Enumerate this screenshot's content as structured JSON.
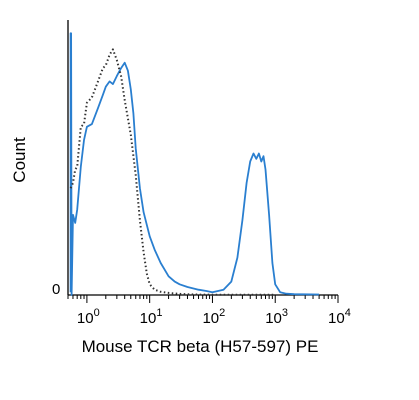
{
  "chart_data": {
    "type": "line",
    "xlabel": "Mouse TCR beta (H57-597) PE",
    "ylabel": "Count",
    "x_scale": "log",
    "xlim": [
      0.5,
      10000
    ],
    "ylim": [
      0,
      100
    ],
    "x_ticks": [
      {
        "value": 1,
        "base": "10",
        "exp": "0"
      },
      {
        "value": 10,
        "base": "10",
        "exp": "1"
      },
      {
        "value": 100,
        "base": "10",
        "exp": "2"
      },
      {
        "value": 1000,
        "base": "10",
        "exp": "3"
      },
      {
        "value": 10000,
        "base": "10",
        "exp": "4"
      }
    ],
    "y_tick_label": "0",
    "series": [
      {
        "color": "#2a7fd0",
        "style": "solid",
        "x": [
          0.55,
          0.55,
          0.56,
          0.57,
          0.6,
          0.65,
          0.7,
          0.8,
          0.9,
          1.0,
          1.2,
          1.5,
          1.8,
          2.0,
          2.3,
          2.6,
          3.0,
          3.5,
          4.0,
          4.5,
          5.0,
          5.5,
          6.0,
          7.0,
          8.0,
          10,
          12,
          15,
          20,
          25,
          30,
          40,
          60,
          80,
          100,
          150,
          200,
          250,
          300,
          350,
          400,
          450,
          500,
          550,
          600,
          650,
          700,
          800,
          900,
          1000,
          1200,
          1500,
          2000,
          5000
        ],
        "y": [
          1,
          98,
          98,
          0,
          30,
          27,
          32,
          48,
          58,
          63,
          64,
          70,
          75,
          78,
          80,
          79,
          82,
          85,
          87,
          84,
          77,
          68,
          55,
          40,
          31,
          22,
          17,
          12,
          7,
          5,
          4,
          3,
          2,
          1.5,
          1,
          2,
          5,
          14,
          28,
          42,
          50,
          53,
          51,
          53,
          50,
          52,
          47,
          30,
          12,
          4,
          1,
          0.5,
          0.3,
          0.2
        ]
      },
      {
        "color": "#333333",
        "style": "dotted",
        "x": [
          0.55,
          0.6,
          0.65,
          0.7,
          0.8,
          0.9,
          1.0,
          1.2,
          1.5,
          1.8,
          2.0,
          2.3,
          2.6,
          3.0,
          3.5,
          4.0,
          5.0,
          6.0,
          7.0,
          8.0,
          9.0,
          10,
          12,
          15,
          20,
          30,
          50,
          100,
          1000
        ],
        "y": [
          40,
          42,
          47,
          48,
          63,
          64,
          72,
          74,
          80,
          85,
          86,
          90,
          92,
          88,
          82,
          73,
          60,
          45,
          28,
          16,
          8,
          4,
          2,
          1.2,
          0.8,
          0.4,
          0.2,
          0.1,
          0.1
        ]
      }
    ]
  }
}
